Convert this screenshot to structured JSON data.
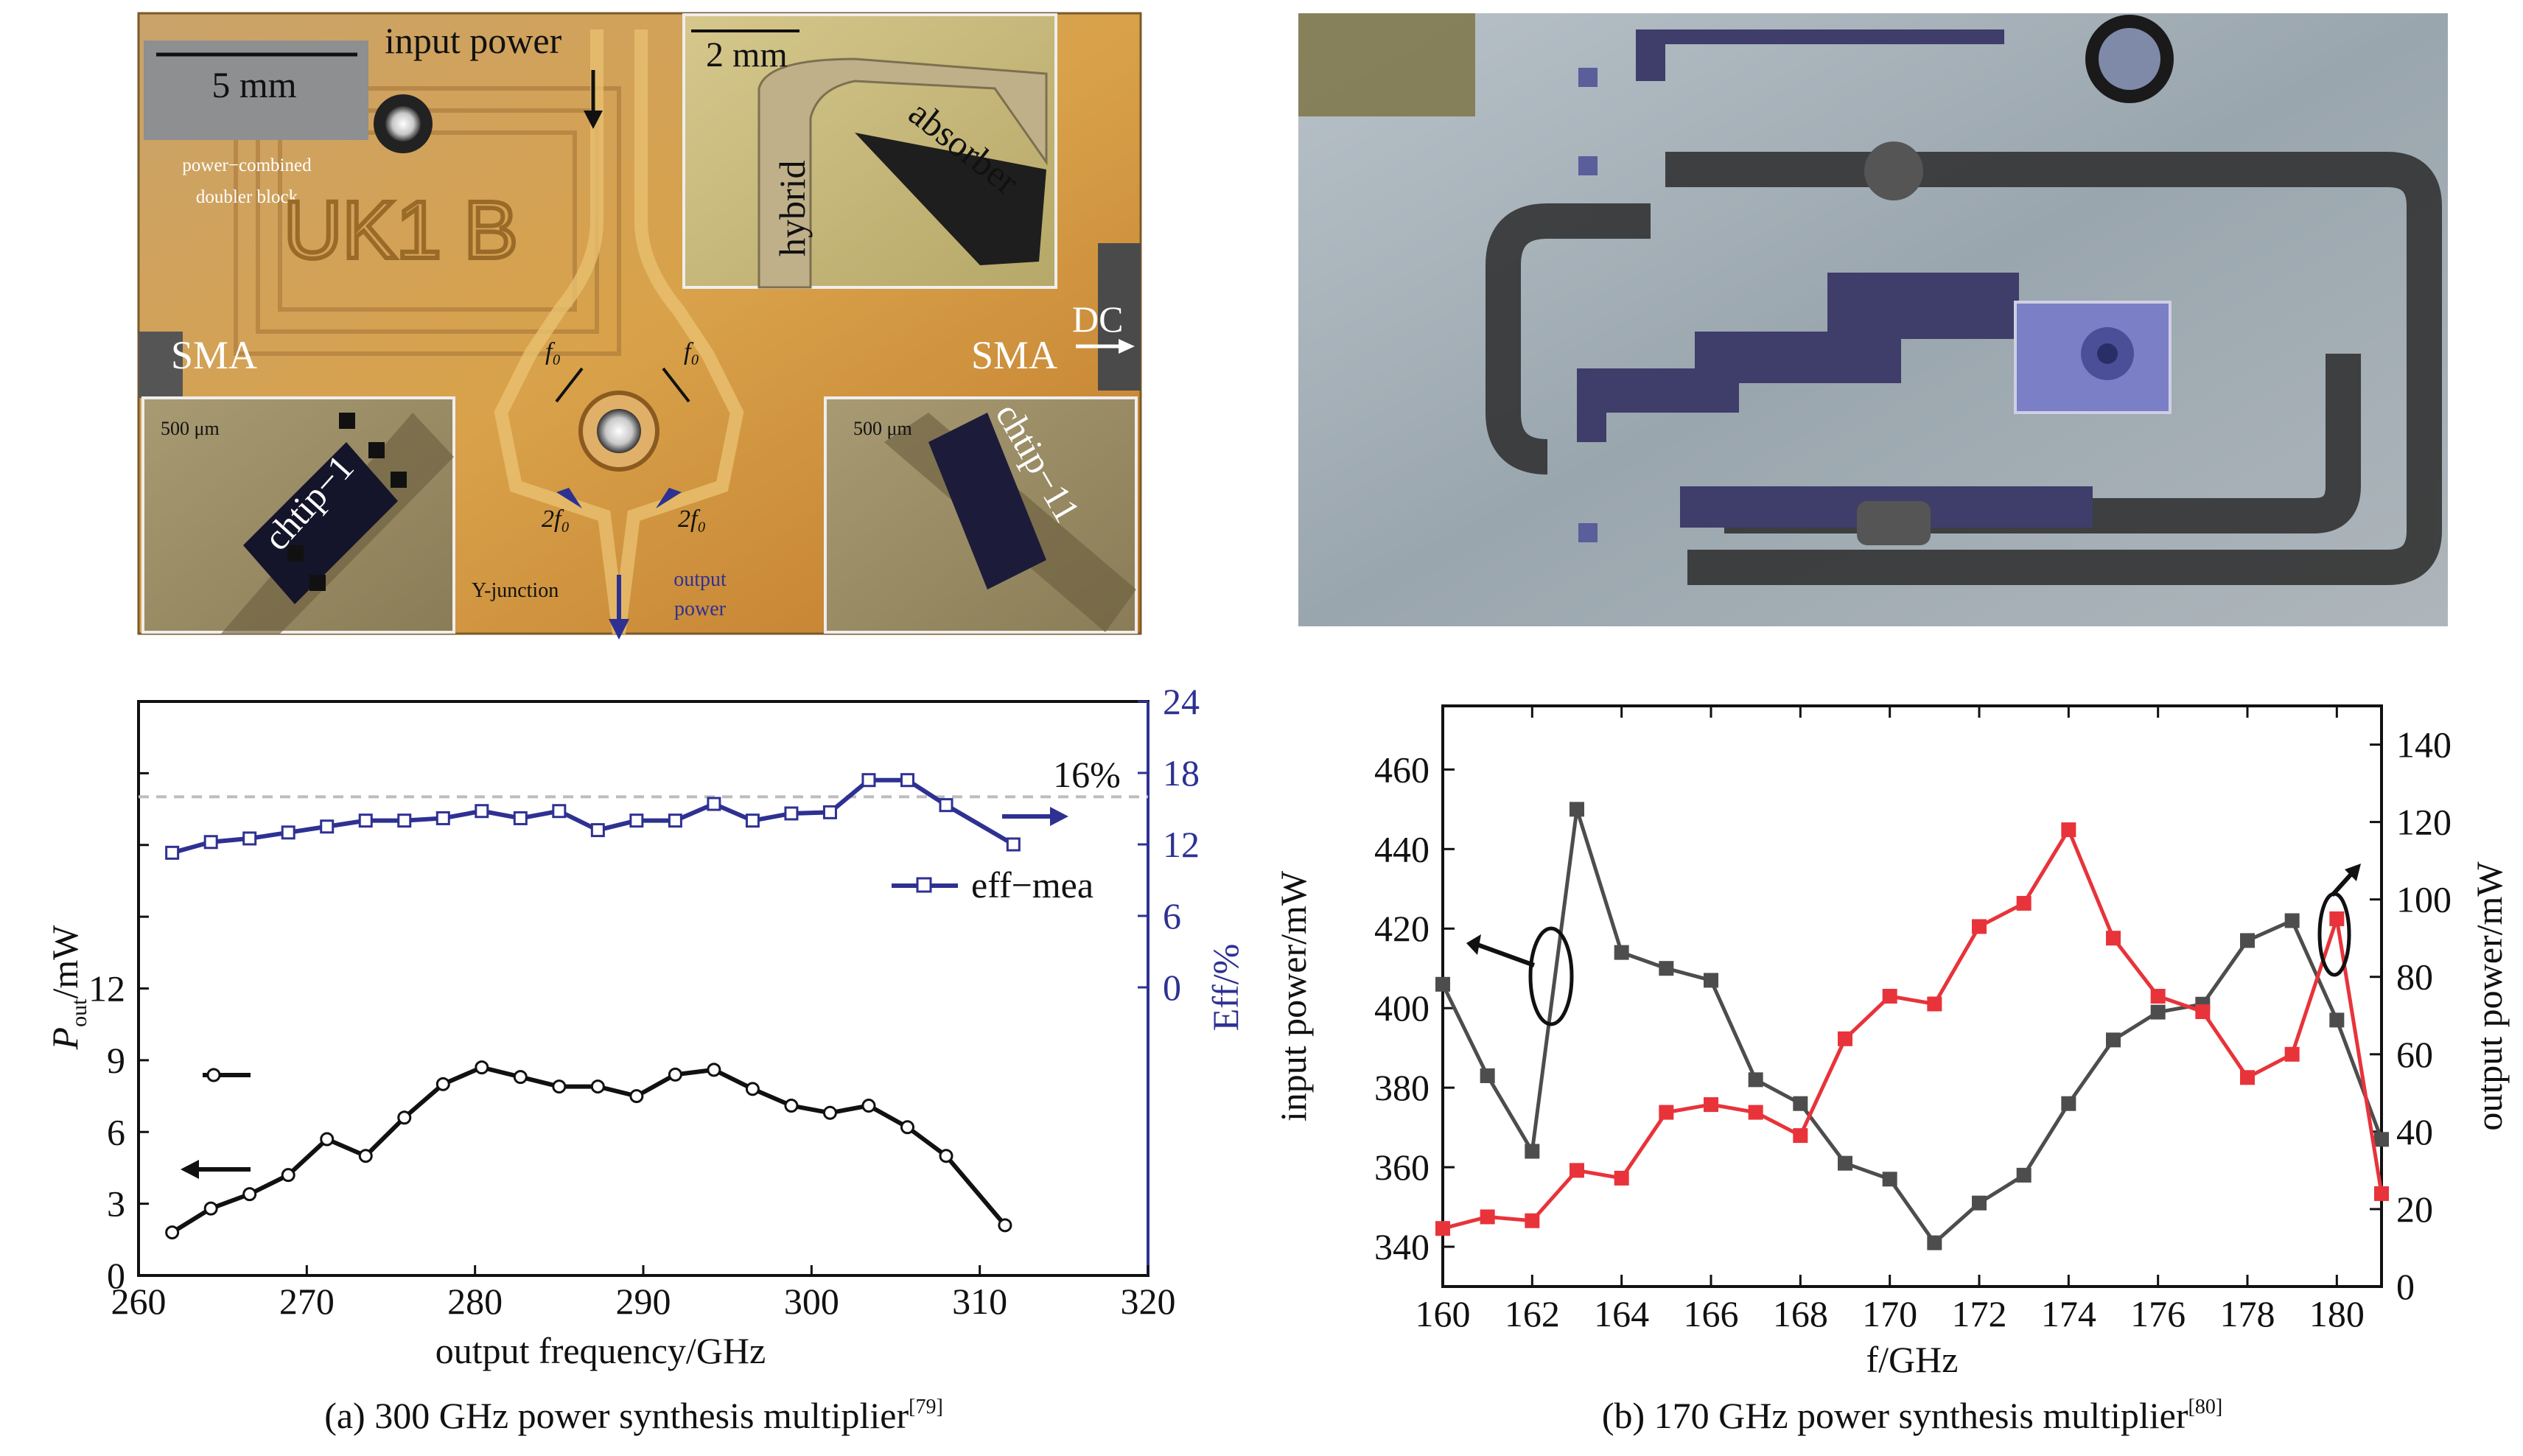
{
  "photo_a": {
    "scale_bar": "5 mm",
    "input_power": "input power",
    "block_label_line1": "power−combined",
    "block_label_line2": "doubler block",
    "engraving": "UK1 B",
    "sma_left": "SMA",
    "sma_right": "SMA",
    "dc": "DC",
    "f0_left": "f₀",
    "f0_right": "f₀",
    "two_f0_left": "2f₀",
    "two_f0_right": "2f₀",
    "y_junction": "Y-junction",
    "output_power_line1": "output",
    "output_power_line2": "power",
    "inset_top_scale": "2 mm",
    "inset_top_hybrid": "hybrid",
    "inset_top_absorber": "absorber",
    "inset_left_scale": "500 μm",
    "inset_left_chip": "chtip−1",
    "inset_right_scale": "500 μm",
    "inset_right_chip": "chtip−11"
  },
  "colors": {
    "black_series": "#111111",
    "blue_series": "#2e3192",
    "gray_series": "#4d4d4d",
    "red_series": "#e8333a"
  },
  "captions": {
    "a": "(a) 300 GHz power synthesis multiplier",
    "a_ref": "[79]",
    "b": "(b) 170 GHz power synthesis multiplier",
    "b_ref": "[80]"
  },
  "chart_data": [
    {
      "type": "line",
      "xlabel": "output frequency/GHz",
      "ylabel_left": "P",
      "ylabel_left_sub": "out",
      "ylabel_left_unit": "/mW",
      "ylabel_right": "Eff/%",
      "xlim": [
        260,
        320
      ],
      "x_ticks": [
        260,
        270,
        280,
        290,
        300,
        310,
        320
      ],
      "y_left_lim": [
        0,
        24
      ],
      "y_left_ticks": [
        0,
        3,
        6,
        9,
        12
      ],
      "y_right_ticks": [
        0,
        6,
        12,
        18,
        24
      ],
      "reference_line": 16,
      "reference_label": "16%",
      "legend": "eff−mea",
      "series": [
        {
          "x": [
            262,
            264.3,
            266.6,
            268.9,
            271.2,
            273.5,
            275.8,
            278.1,
            280.4,
            282.7,
            285,
            287.3,
            289.6,
            291.9,
            294.2,
            296.5,
            298.8,
            301.1,
            303.4,
            305.7,
            308,
            311.5
          ],
          "values": [
            1.8,
            2.8,
            3.4,
            4.2,
            5.7,
            5.0,
            6.6,
            8.0,
            8.7,
            8.3,
            7.9,
            7.9,
            7.5,
            8.4,
            8.6,
            7.8,
            7.1,
            6.8,
            7.1,
            6.2,
            5.0,
            2.1
          ]
        },
        {
          "name": "eff−mea",
          "axis": "right",
          "x": [
            262,
            264.3,
            266.6,
            268.9,
            271.2,
            273.5,
            275.8,
            278.1,
            280.4,
            282.7,
            285,
            287.3,
            289.6,
            291.9,
            294.2,
            296.5,
            298.8,
            301.1,
            303.4,
            305.7,
            308,
            312
          ],
          "values": [
            11.3,
            12.2,
            12.5,
            13.0,
            13.5,
            14.0,
            14.0,
            14.2,
            14.8,
            14.2,
            14.8,
            13.2,
            14.0,
            14.0,
            15.4,
            14.0,
            14.6,
            14.7,
            17.4,
            17.4,
            15.3,
            12.0
          ]
        }
      ]
    },
    {
      "type": "line",
      "xlabel": "f/GHz",
      "ylabel_left": "input power/mW",
      "ylabel_right": "output power/mW",
      "xlim": [
        160,
        181
      ],
      "x_ticks": [
        160,
        162,
        164,
        166,
        168,
        170,
        172,
        174,
        176,
        178,
        180
      ],
      "y_left_lim": [
        330,
        476
      ],
      "y_left_ticks": [
        340,
        360,
        380,
        400,
        420,
        440,
        460
      ],
      "y_right_lim": [
        0,
        150
      ],
      "y_right_ticks": [
        0,
        20,
        40,
        60,
        80,
        100,
        120,
        140
      ],
      "series": [
        {
          "x": [
            160,
            161,
            162,
            163,
            164,
            165,
            166,
            167,
            168,
            169,
            170,
            171,
            172,
            173,
            174,
            175,
            176,
            177,
            178,
            179,
            180,
            181
          ],
          "values": [
            406,
            383,
            364,
            450,
            414,
            410,
            407,
            382,
            376,
            361,
            357,
            341,
            351,
            358,
            376,
            392,
            399,
            401,
            417,
            422,
            397,
            367
          ]
        },
        {
          "axis": "right",
          "x": [
            160,
            161,
            162,
            163,
            164,
            165,
            166,
            167,
            168,
            169,
            170,
            171,
            172,
            173,
            174,
            175,
            176,
            177,
            178,
            179,
            180,
            181
          ],
          "values": [
            15,
            18,
            17,
            30,
            28,
            45,
            47,
            45,
            39,
            64,
            75,
            73,
            93,
            99,
            118,
            90,
            75,
            71,
            54,
            60,
            95,
            24
          ]
        }
      ]
    }
  ]
}
